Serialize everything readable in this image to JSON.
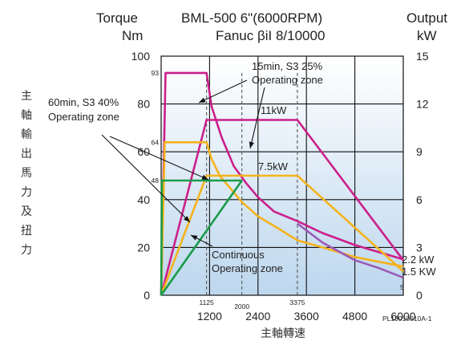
{
  "chart_data": {
    "type": "line",
    "title": "BML-500 6\"(6000RPM)",
    "subtitle": "Fanuc βiI 8/10000",
    "left_axis_title": [
      "Torque",
      "Nm"
    ],
    "right_axis_title": [
      "Output",
      "kW"
    ],
    "ylabel": "主軸輸出馬力及扭力",
    "xlabel": "主軸轉速",
    "code": "PL13010010A-1",
    "xlim": [
      0,
      6000
    ],
    "ylim": [
      0,
      100
    ],
    "y2lim": [
      0,
      15
    ],
    "x_ticks": [
      "1200",
      "2400",
      "3600",
      "4800",
      "6000"
    ],
    "x_ticks_small": [
      "1125",
      "2000",
      "3375"
    ],
    "y_ticks": [
      "0",
      "20",
      "40",
      "60",
      "80",
      "100"
    ],
    "y_ticks_small": [
      "93",
      "64",
      "48"
    ],
    "y2_ticks": [
      "0",
      "3",
      "6",
      "9",
      "12",
      "15"
    ],
    "y2_small": "5",
    "power_labels": [
      "11kW",
      "7.5kW",
      "2.2 kW",
      "1.5 KW"
    ],
    "annotations": {
      "s3_25": [
        "15min, S3 25%",
        "Operating zone"
      ],
      "s3_40": [
        "60min, S3 40%",
        "Operating zone"
      ],
      "continuous": [
        "Continuous",
        "Operating zone"
      ]
    },
    "colors": {
      "s3_25": "#cc1f8a",
      "s3_40": "#f5b31c",
      "continuous": "#1a9c4a",
      "dropping": "#9b59b6"
    },
    "series": [
      {
        "id": "torque_s3_25",
        "color": "#cc1f8a",
        "x": [
          0,
          110,
          1125,
          1250,
          1500,
          1800,
          2100,
          2400,
          2800,
          3375,
          4000,
          4800,
          5400,
          6000
        ],
        "y": [
          0,
          93,
          93,
          79,
          66,
          54,
          47,
          41,
          35,
          31,
          26,
          21,
          18,
          15
        ]
      },
      {
        "id": "power_s3_25",
        "color": "#cc1f8a",
        "x": [
          0,
          1125,
          3375,
          6000
        ],
        "y": [
          0,
          11,
          11,
          2.2
        ]
      },
      {
        "id": "torque_s3_40",
        "color": "#f5b31c",
        "x": [
          0,
          90,
          1125,
          1250,
          1450,
          1700,
          2000,
          2400,
          2800,
          3375,
          4000,
          4800,
          5400,
          6000
        ],
        "y": [
          0,
          64,
          64,
          57,
          50,
          45,
          39,
          33,
          29,
          23,
          20,
          16,
          14,
          12
        ]
      },
      {
        "id": "power_s3_40",
        "color": "#f5b31c",
        "x": [
          0,
          1125,
          3375,
          6000
        ],
        "y": [
          0,
          7.5,
          7.5,
          1.5
        ]
      },
      {
        "id": "torque_continuous",
        "color": "#1a9c4a",
        "x": [
          0,
          20,
          2000
        ],
        "y": [
          0,
          48,
          48
        ]
      },
      {
        "id": "power_continuous",
        "color": "#1a9c4a",
        "x": [
          0,
          2000
        ],
        "y": [
          0,
          7.2
        ]
      },
      {
        "id": "power_drop",
        "color": "#9b59b6",
        "x": [
          3375,
          4000,
          4800,
          5400,
          6000
        ],
        "y": [
          4.5,
          3.3,
          2.2,
          1.7,
          1.1
        ]
      }
    ]
  }
}
